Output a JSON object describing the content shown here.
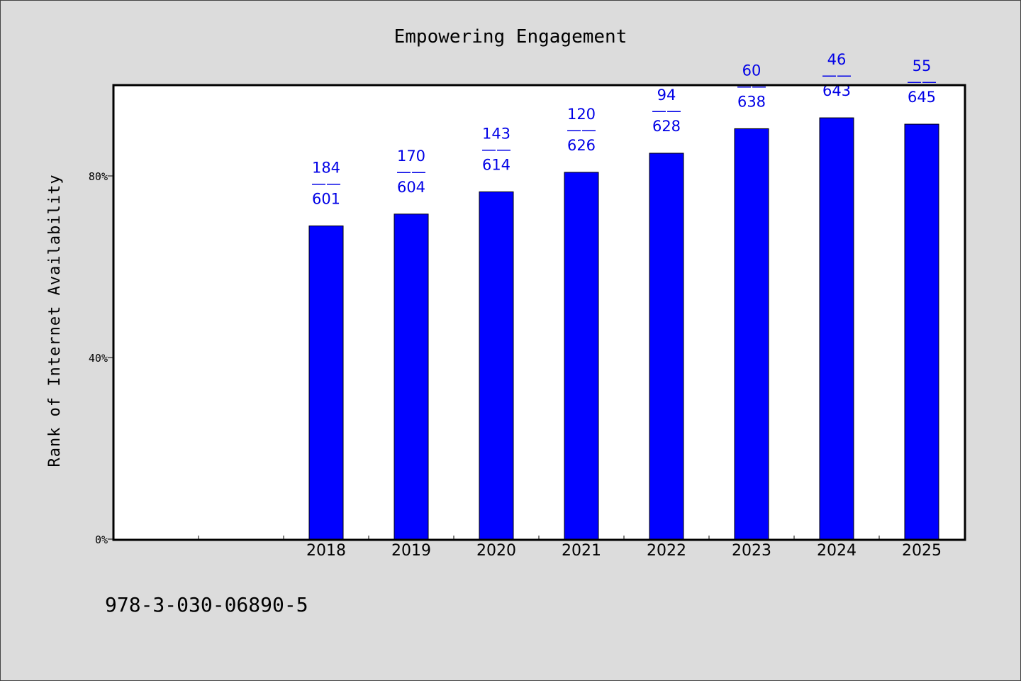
{
  "chart_data": {
    "type": "bar",
    "title": "Empowering Engagement",
    "ylabel": "Rank of Internet Availability",
    "xlabel": "",
    "categories": [
      "",
      "",
      "2018",
      "2019",
      "2020",
      "2021",
      "2022",
      "2023",
      "2024",
      "2025"
    ],
    "values": [
      null,
      null,
      69.0,
      71.6,
      76.5,
      80.8,
      85.0,
      90.4,
      92.8,
      91.4
    ],
    "bar_labels": [
      null,
      null,
      {
        "top": "184",
        "bottom": "601"
      },
      {
        "top": "170",
        "bottom": "604"
      },
      {
        "top": "143",
        "bottom": "614"
      },
      {
        "top": "120",
        "bottom": "626"
      },
      {
        "top": "94",
        "bottom": "628"
      },
      {
        "top": "60",
        "bottom": "638"
      },
      {
        "top": "46",
        "bottom": "643"
      },
      {
        "top": "55",
        "bottom": "645"
      }
    ],
    "label_separator": "——",
    "ylim": [
      0,
      100
    ],
    "yticks": [
      0,
      40,
      80
    ],
    "ytick_labels": [
      "0%",
      "40%",
      "80%"
    ],
    "grid": false,
    "colors": {
      "bar": "#0000ff",
      "label": "#0000e6",
      "background": "#dcdcdc",
      "plot": "#ffffff"
    }
  },
  "footer": {
    "isbn": "978-3-030-06890-5"
  }
}
